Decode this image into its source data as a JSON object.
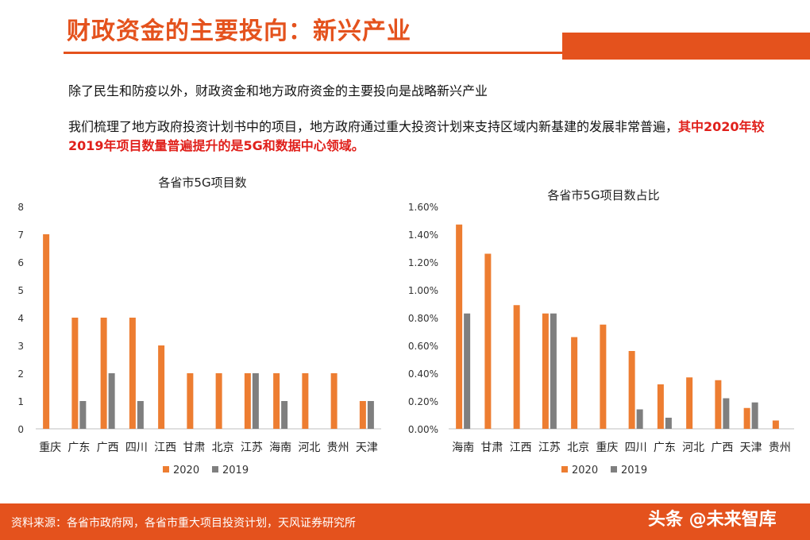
{
  "header": {
    "title": "财政资金的主要投向：新兴产业"
  },
  "text": {
    "p1": "除了民生和防疫以外，财政资金和地方政府资金的主要投向是战略新兴产业",
    "p2_normal": "我们梳理了地方政府投资计划书中的项目，地方政府通过重大投资计划来支持区域内新基建的发展非常普遍，",
    "p2_highlight": "其中2020年较2019年项目数量普遍提升的是5G和数据中心领域。"
  },
  "colors": {
    "accent": "#e4521d",
    "s2020": "#ed7d31",
    "s2019": "#7f7f7f"
  },
  "chart_data": [
    {
      "type": "bar",
      "title": "各省市5G项目数",
      "categories": [
        "重庆",
        "广东",
        "广西",
        "四川",
        "江西",
        "甘肃",
        "北京",
        "江苏",
        "海南",
        "河北",
        "贵州",
        "天津"
      ],
      "series": [
        {
          "name": "2020",
          "values": [
            7,
            4,
            4,
            4,
            3,
            2,
            2,
            2,
            2,
            2,
            2,
            1
          ]
        },
        {
          "name": "2019",
          "values": [
            0,
            1,
            2,
            1,
            0,
            0,
            0,
            2,
            1,
            0,
            0,
            1
          ]
        }
      ],
      "ylim": [
        0,
        8
      ],
      "yticks": [
        "0",
        "1",
        "2",
        "3",
        "4",
        "5",
        "6",
        "7",
        "8"
      ],
      "legend": "bottom"
    },
    {
      "type": "bar",
      "title": "各省市5G项目数占比",
      "categories": [
        "海南",
        "甘肃",
        "江西",
        "江苏",
        "北京",
        "重庆",
        "四川",
        "广东",
        "河北",
        "广西",
        "天津",
        "贵州"
      ],
      "series": [
        {
          "name": "2020",
          "values": [
            1.47,
            1.26,
            0.89,
            0.83,
            0.66,
            0.75,
            0.56,
            0.32,
            0.37,
            0.35,
            0.15,
            0.06
          ]
        },
        {
          "name": "2019",
          "values": [
            0.83,
            0,
            0,
            0.83,
            0,
            0,
            0.14,
            0.08,
            0,
            0.22,
            0.19,
            0
          ]
        }
      ],
      "ylim": [
        0,
        1.6
      ],
      "yticks": [
        "0.00%",
        "0.20%",
        "0.40%",
        "0.60%",
        "0.80%",
        "1.00%",
        "1.20%",
        "1.40%",
        "1.60%"
      ],
      "legend": "bottom"
    }
  ],
  "footer": {
    "source": "资料来源：各省市政府网，各省市重大项目投资计划，天风证券研究所",
    "watermark": "头条 @未来智库"
  }
}
